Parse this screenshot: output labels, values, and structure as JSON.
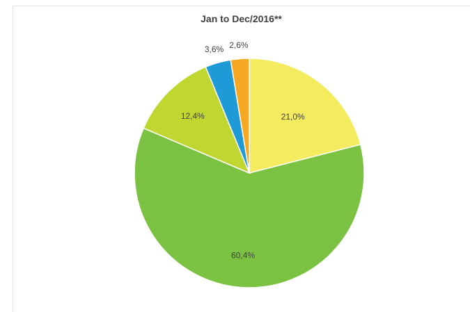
{
  "chart_data": {
    "type": "pie",
    "title": "Jan to Dec/2016**",
    "slices": [
      {
        "value": 21.0,
        "label": "21,0%",
        "color": "#F5EB5F"
      },
      {
        "value": 60.4,
        "label": "60,4%",
        "color": "#7CC242"
      },
      {
        "value": 12.4,
        "label": "12,4%",
        "color": "#BFD730"
      },
      {
        "value": 3.6,
        "label": "3,6%",
        "color": "#1E9AD6"
      },
      {
        "value": 2.6,
        "label": "2,6%",
        "color": "#F7A823"
      }
    ],
    "legend": "none",
    "start_angle_deg": 0,
    "direction": "clockwise"
  }
}
